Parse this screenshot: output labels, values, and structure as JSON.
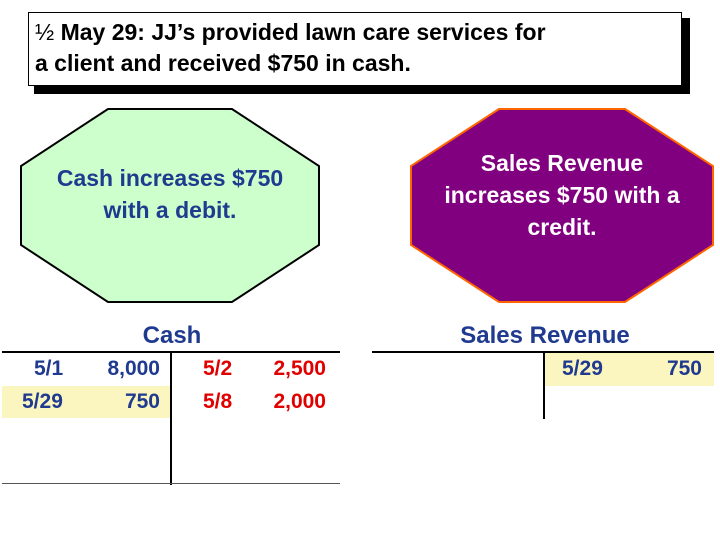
{
  "title": {
    "half_symbol": "½",
    "line1_rest": " May 29: JJ’s provided lawn care services for",
    "line2": "a client and received $750 in cash."
  },
  "octagons": {
    "left": {
      "text_line1": "Cash increases $750",
      "text_line2": "with a debit.",
      "fill": "#ccffcc"
    },
    "right": {
      "text_line1": "Sales Revenue",
      "text_line2": "increases $750 with a",
      "text_line3": "credit.",
      "fill": "#800080",
      "border": "#ff6600"
    }
  },
  "cash_account": {
    "title": "Cash",
    "debits": [
      {
        "date": "5/1",
        "amount": "8,000"
      },
      {
        "date": "5/29",
        "amount": "750"
      }
    ],
    "credits": [
      {
        "date": "5/2",
        "amount": "2,500"
      },
      {
        "date": "5/8",
        "amount": "2,000"
      }
    ]
  },
  "sales_revenue_account": {
    "title": "Sales Revenue",
    "credits": [
      {
        "date": "5/29",
        "amount": "750"
      }
    ]
  },
  "colors": {
    "account_text": "#1f3a8f",
    "credit_text": "#e00000",
    "highlight": "#fbf6c0"
  }
}
